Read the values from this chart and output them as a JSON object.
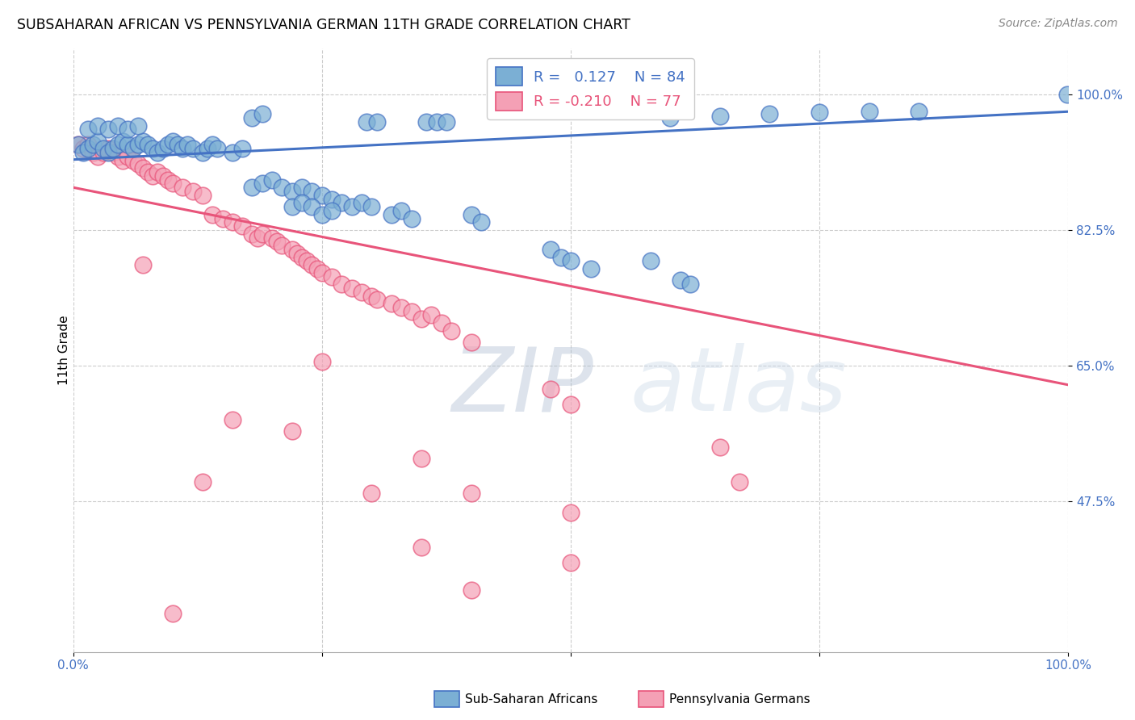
{
  "title": "SUBSAHARAN AFRICAN VS PENNSYLVANIA GERMAN 11TH GRADE CORRELATION CHART",
  "source": "Source: ZipAtlas.com",
  "ylabel": "11th Grade",
  "yticks": [
    "100.0%",
    "82.5%",
    "65.0%",
    "47.5%"
  ],
  "ytick_vals": [
    1.0,
    0.825,
    0.65,
    0.475
  ],
  "xlim": [
    0.0,
    1.0
  ],
  "ylim": [
    0.28,
    1.06
  ],
  "blue_color": "#7BAFD4",
  "pink_color": "#F4A0B5",
  "line_blue": "#4472C4",
  "line_pink": "#E8547A",
  "watermark_zip": "ZIP",
  "watermark_atlas": "atlas",
  "blue_line_x0": 0.0,
  "blue_line_x1": 1.0,
  "blue_line_y0": 0.916,
  "blue_line_y1": 0.978,
  "pink_line_x0": 0.0,
  "pink_line_x1": 1.0,
  "pink_line_y0": 0.88,
  "pink_line_y1": 0.625,
  "blue_points": [
    [
      0.005,
      0.935
    ],
    [
      0.01,
      0.925
    ],
    [
      0.015,
      0.93
    ],
    [
      0.02,
      0.935
    ],
    [
      0.025,
      0.94
    ],
    [
      0.03,
      0.93
    ],
    [
      0.035,
      0.925
    ],
    [
      0.04,
      0.93
    ],
    [
      0.045,
      0.935
    ],
    [
      0.05,
      0.94
    ],
    [
      0.055,
      0.935
    ],
    [
      0.06,
      0.93
    ],
    [
      0.065,
      0.935
    ],
    [
      0.07,
      0.94
    ],
    [
      0.075,
      0.935
    ],
    [
      0.08,
      0.93
    ],
    [
      0.085,
      0.925
    ],
    [
      0.09,
      0.93
    ],
    [
      0.095,
      0.935
    ],
    [
      0.1,
      0.94
    ],
    [
      0.105,
      0.935
    ],
    [
      0.11,
      0.93
    ],
    [
      0.115,
      0.935
    ],
    [
      0.12,
      0.93
    ],
    [
      0.13,
      0.925
    ],
    [
      0.135,
      0.93
    ],
    [
      0.14,
      0.935
    ],
    [
      0.145,
      0.93
    ],
    [
      0.015,
      0.955
    ],
    [
      0.025,
      0.96
    ],
    [
      0.035,
      0.955
    ],
    [
      0.045,
      0.96
    ],
    [
      0.055,
      0.955
    ],
    [
      0.065,
      0.96
    ],
    [
      0.16,
      0.925
    ],
    [
      0.17,
      0.93
    ],
    [
      0.18,
      0.88
    ],
    [
      0.19,
      0.885
    ],
    [
      0.2,
      0.89
    ],
    [
      0.21,
      0.88
    ],
    [
      0.22,
      0.875
    ],
    [
      0.23,
      0.88
    ],
    [
      0.24,
      0.875
    ],
    [
      0.25,
      0.87
    ],
    [
      0.26,
      0.865
    ],
    [
      0.27,
      0.86
    ],
    [
      0.28,
      0.855
    ],
    [
      0.29,
      0.86
    ],
    [
      0.3,
      0.855
    ],
    [
      0.22,
      0.855
    ],
    [
      0.23,
      0.86
    ],
    [
      0.24,
      0.855
    ],
    [
      0.25,
      0.845
    ],
    [
      0.26,
      0.85
    ],
    [
      0.32,
      0.845
    ],
    [
      0.33,
      0.85
    ],
    [
      0.34,
      0.84
    ],
    [
      0.4,
      0.845
    ],
    [
      0.41,
      0.835
    ],
    [
      0.48,
      0.8
    ],
    [
      0.49,
      0.79
    ],
    [
      0.5,
      0.785
    ],
    [
      0.52,
      0.775
    ],
    [
      0.58,
      0.785
    ],
    [
      0.61,
      0.76
    ],
    [
      0.62,
      0.755
    ],
    [
      0.18,
      0.97
    ],
    [
      0.19,
      0.975
    ],
    [
      0.295,
      0.965
    ],
    [
      0.305,
      0.965
    ],
    [
      0.355,
      0.965
    ],
    [
      0.365,
      0.965
    ],
    [
      0.375,
      0.965
    ],
    [
      0.6,
      0.97
    ],
    [
      0.65,
      0.972
    ],
    [
      0.7,
      0.975
    ],
    [
      0.75,
      0.977
    ],
    [
      0.8,
      0.978
    ],
    [
      0.85,
      0.978
    ],
    [
      0.999,
      1.0
    ]
  ],
  "pink_points": [
    [
      0.005,
      0.935
    ],
    [
      0.01,
      0.93
    ],
    [
      0.015,
      0.935
    ],
    [
      0.02,
      0.925
    ],
    [
      0.025,
      0.92
    ],
    [
      0.03,
      0.925
    ],
    [
      0.035,
      0.93
    ],
    [
      0.04,
      0.925
    ],
    [
      0.045,
      0.92
    ],
    [
      0.05,
      0.915
    ],
    [
      0.055,
      0.92
    ],
    [
      0.06,
      0.915
    ],
    [
      0.065,
      0.91
    ],
    [
      0.07,
      0.905
    ],
    [
      0.075,
      0.9
    ],
    [
      0.08,
      0.895
    ],
    [
      0.085,
      0.9
    ],
    [
      0.09,
      0.895
    ],
    [
      0.095,
      0.89
    ],
    [
      0.1,
      0.885
    ],
    [
      0.11,
      0.88
    ],
    [
      0.12,
      0.875
    ],
    [
      0.13,
      0.87
    ],
    [
      0.14,
      0.845
    ],
    [
      0.15,
      0.84
    ],
    [
      0.16,
      0.835
    ],
    [
      0.17,
      0.83
    ],
    [
      0.07,
      0.78
    ],
    [
      0.18,
      0.82
    ],
    [
      0.185,
      0.815
    ],
    [
      0.19,
      0.82
    ],
    [
      0.2,
      0.815
    ],
    [
      0.205,
      0.81
    ],
    [
      0.21,
      0.805
    ],
    [
      0.22,
      0.8
    ],
    [
      0.225,
      0.795
    ],
    [
      0.23,
      0.79
    ],
    [
      0.235,
      0.785
    ],
    [
      0.24,
      0.78
    ],
    [
      0.245,
      0.775
    ],
    [
      0.25,
      0.77
    ],
    [
      0.26,
      0.765
    ],
    [
      0.27,
      0.755
    ],
    [
      0.28,
      0.75
    ],
    [
      0.29,
      0.745
    ],
    [
      0.3,
      0.74
    ],
    [
      0.305,
      0.735
    ],
    [
      0.32,
      0.73
    ],
    [
      0.33,
      0.725
    ],
    [
      0.34,
      0.72
    ],
    [
      0.35,
      0.71
    ],
    [
      0.36,
      0.715
    ],
    [
      0.37,
      0.705
    ],
    [
      0.38,
      0.695
    ],
    [
      0.25,
      0.655
    ],
    [
      0.4,
      0.68
    ],
    [
      0.48,
      0.62
    ],
    [
      0.5,
      0.6
    ],
    [
      0.65,
      0.545
    ],
    [
      0.16,
      0.58
    ],
    [
      0.22,
      0.565
    ],
    [
      0.35,
      0.53
    ],
    [
      0.13,
      0.5
    ],
    [
      0.3,
      0.485
    ],
    [
      0.4,
      0.485
    ],
    [
      0.5,
      0.46
    ],
    [
      0.67,
      0.5
    ],
    [
      0.35,
      0.415
    ],
    [
      0.5,
      0.395
    ],
    [
      0.4,
      0.36
    ],
    [
      0.1,
      0.33
    ]
  ]
}
